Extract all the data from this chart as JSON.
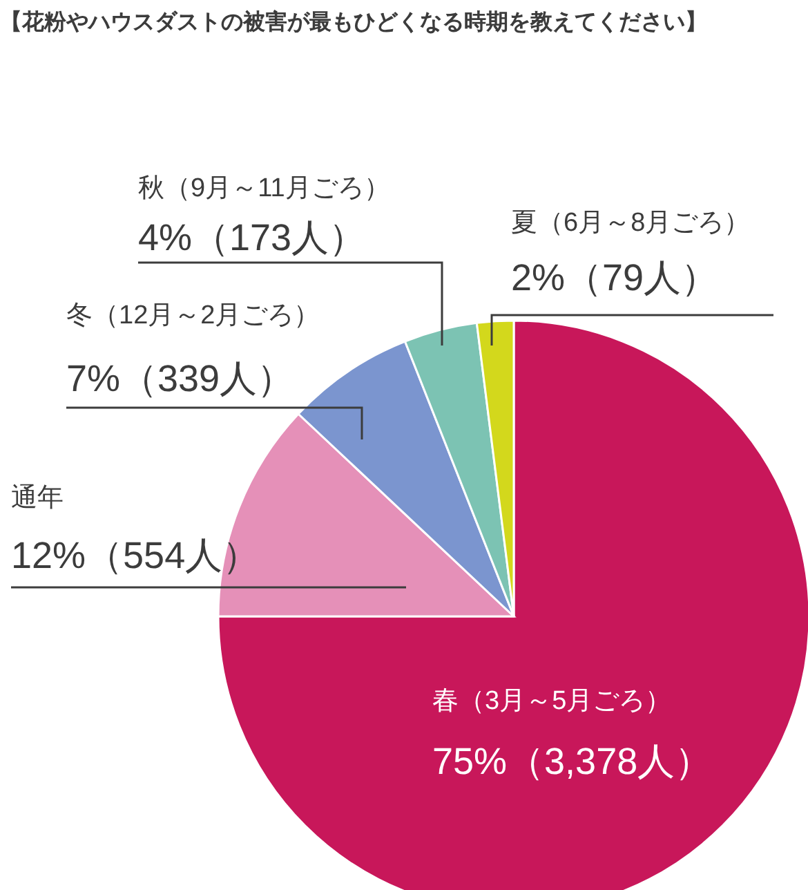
{
  "chart_data": {
    "type": "pie",
    "title": "【花粉やハウスダストの被害が最もひどくなる時期を教えてください】",
    "categories": [
      "春（3月～5月ごろ）",
      "通年",
      "冬（12月～2月ごろ）",
      "秋（9月～11月ごろ）",
      "夏（6月～8月ごろ）"
    ],
    "values": [
      75,
      12,
      7,
      4,
      2
    ],
    "colors": [
      "#c8175a",
      "#e590b8",
      "#7b95cf",
      "#7cc3b3",
      "#d3d81c"
    ],
    "value_labels": [
      "75%（3,378人）",
      "12%（554人）",
      "7%（339人）",
      "4%（173人）",
      "2%（79人）"
    ]
  }
}
